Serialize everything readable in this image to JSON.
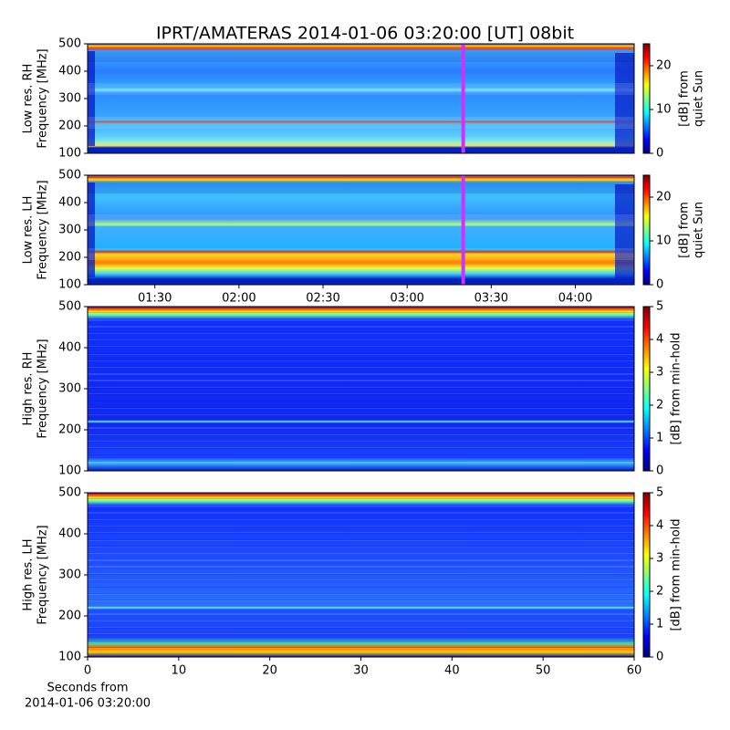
{
  "title": "IPRT/AMATERAS 2014-01-06 03:20:00 [UT]   08bit",
  "chart_data": [
    {
      "type": "heatmap",
      "ylabel": [
        "Low res. RH",
        "Frequency [MHz]"
      ],
      "ylim": [
        100,
        500
      ],
      "yticks": [
        100,
        200,
        300,
        400,
        500
      ],
      "xlim": [
        66,
        261
      ],
      "marker_x": 200,
      "marker_color": "#cc33ff",
      "colormap": "jet",
      "colorbar": {
        "label": [
          "[dB] from",
          "quiet Sun"
        ],
        "lim": [
          0,
          25
        ],
        "ticks": [
          0,
          10,
          20
        ]
      }
    },
    {
      "type": "heatmap",
      "ylabel": [
        "Low res. LH",
        "Frequency [MHz]"
      ],
      "ylim": [
        100,
        500
      ],
      "yticks": [
        100,
        200,
        300,
        400,
        500
      ],
      "xlim": [
        66,
        261
      ],
      "marker_x": 200,
      "marker_color": "#cc33ff",
      "colormap": "jet",
      "xticks": [
        {
          "value": 90,
          "label": "01:30"
        },
        {
          "value": 120,
          "label": "02:00"
        },
        {
          "value": 150,
          "label": "02:30"
        },
        {
          "value": 180,
          "label": "03:00"
        },
        {
          "value": 210,
          "label": "03:30"
        },
        {
          "value": 240,
          "label": "04:00"
        }
      ],
      "colorbar": {
        "label": [
          "[dB] from",
          "quiet Sun"
        ],
        "lim": [
          0,
          25
        ],
        "ticks": [
          0,
          10,
          20
        ]
      }
    },
    {
      "type": "heatmap",
      "ylabel": [
        "High res. RH",
        "Frequency [MHz]"
      ],
      "ylim": [
        100,
        500
      ],
      "yticks": [
        100,
        200,
        300,
        400,
        500
      ],
      "xlim": [
        0,
        60
      ],
      "colormap": "jet",
      "colorbar": {
        "label": [
          "[dB] from min-hold"
        ],
        "lim": [
          0,
          5
        ],
        "ticks": [
          0,
          1,
          2,
          3,
          4,
          5
        ]
      }
    },
    {
      "type": "heatmap",
      "ylabel": [
        "High res. LH",
        "Frequency [MHz]"
      ],
      "ylim": [
        100,
        500
      ],
      "yticks": [
        100,
        200,
        300,
        400,
        500
      ],
      "xlim": [
        0,
        60
      ],
      "xticks": [
        0,
        10,
        20,
        30,
        40,
        50,
        60
      ],
      "xlabel": [
        "Seconds from",
        "2014-01-06 03:20:00"
      ],
      "colormap": "jet",
      "colorbar": {
        "label": [
          "[dB] from min-hold"
        ],
        "lim": [
          0,
          5
        ],
        "ticks": [
          0,
          1,
          2,
          3,
          4,
          5
        ]
      }
    }
  ]
}
